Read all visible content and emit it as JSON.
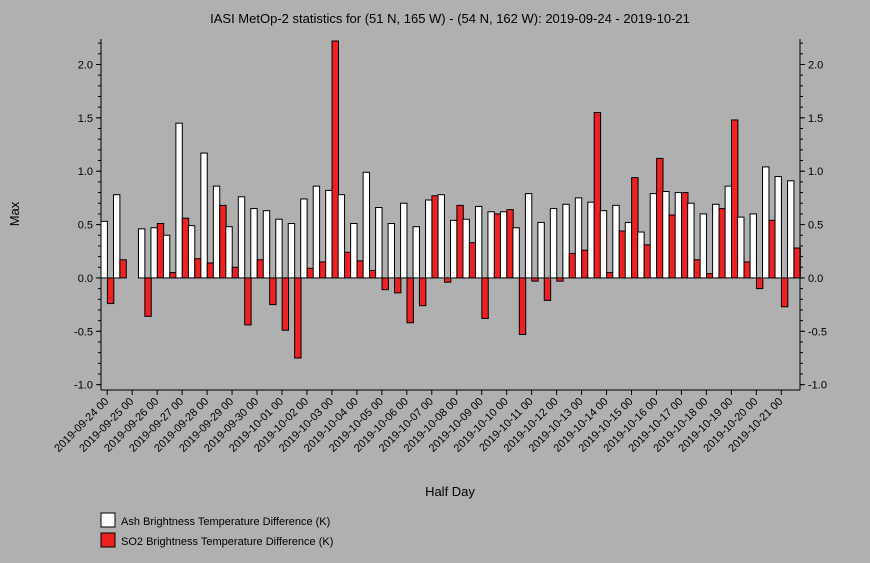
{
  "chart_data": {
    "type": "bar",
    "title": "IASI MetOp-2 statistics for (51 N, 165 W) - (54 N, 162 W): 2019-09-24 - 2019-10-21",
    "xlabel": "Half Day",
    "ylabel": "Max",
    "ylim": [
      -1.05,
      2.22
    ],
    "yticks": [
      -1.0,
      -0.5,
      0.0,
      0.5,
      1.0,
      1.5,
      2.0
    ],
    "ytick_labels": [
      "-1.0",
      "-0.5",
      "0.0",
      "0.5",
      "1.0",
      "1.5",
      "2.0"
    ],
    "x_tick_labels": [
      "2019-09-24 00",
      "2019-09-25 00",
      "2019-09-26 00",
      "2019-09-27 00",
      "2019-09-28 00",
      "2019-09-29 00",
      "2019-09-30 00",
      "2019-10-01 00",
      "2019-10-02 00",
      "2019-10-03 00",
      "2019-10-04 00",
      "2019-10-05 00",
      "2019-10-06 00",
      "2019-10-07 00",
      "2019-10-08 00",
      "2019-10-09 00",
      "2019-10-10 00",
      "2019-10-11 00",
      "2019-10-12 00",
      "2019-10-13 00",
      "2019-10-14 00",
      "2019-10-15 00",
      "2019-10-16 00",
      "2019-10-17 00",
      "2019-10-18 00",
      "2019-10-19 00",
      "2019-10-20 00",
      "2019-10-21 00"
    ],
    "grid": false,
    "legend_position": "bottom-left",
    "series": [
      {
        "name": "Ash Brightness Temperature Difference (K)",
        "color": "#ffffff",
        "values": [
          0.53,
          0.78,
          null,
          0.46,
          0.47,
          0.4,
          1.45,
          0.49,
          1.17,
          0.86,
          0.48,
          0.76,
          0.65,
          0.63,
          0.55,
          0.51,
          0.74,
          0.86,
          0.82,
          0.78,
          0.51,
          0.99,
          0.66,
          0.51,
          0.7,
          0.48,
          0.73,
          0.78,
          0.54,
          0.55,
          0.67,
          0.62,
          0.62,
          0.47,
          0.79,
          0.52,
          0.65,
          0.69,
          0.75,
          0.71,
          0.63,
          0.68,
          0.52,
          0.43,
          0.79,
          0.81,
          0.8,
          0.7,
          0.6,
          0.69,
          0.86,
          0.57,
          0.6,
          1.04,
          0.95,
          0.91
        ]
      },
      {
        "name": "SO2 Brightness Temperature Difference (K)",
        "color": "#ee2222",
        "values": [
          -0.24,
          0.17,
          null,
          -0.36,
          0.51,
          0.05,
          0.56,
          0.18,
          0.14,
          0.68,
          0.1,
          -0.44,
          0.17,
          -0.25,
          -0.49,
          -0.75,
          0.09,
          0.15,
          2.22,
          0.24,
          0.16,
          0.07,
          -0.11,
          -0.14,
          -0.42,
          -0.26,
          0.77,
          -0.04,
          0.68,
          0.33,
          -0.38,
          0.6,
          0.64,
          -0.53,
          -0.03,
          -0.21,
          -0.03,
          0.23,
          0.26,
          1.55,
          0.05,
          0.44,
          0.94,
          0.31,
          1.12,
          0.59,
          0.8,
          0.17,
          0.04,
          0.65,
          1.48,
          0.15,
          -0.1,
          0.54,
          -0.27,
          0.28
        ]
      }
    ]
  }
}
